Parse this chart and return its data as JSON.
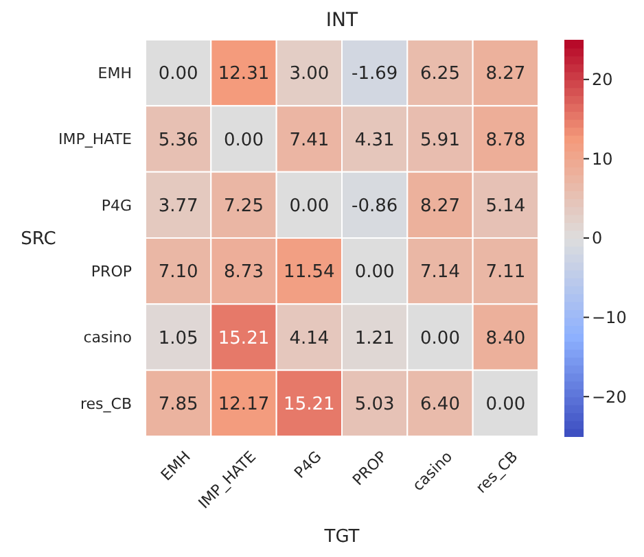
{
  "chart_data": {
    "type": "heatmap",
    "title": "INT",
    "xlabel": "TGT",
    "ylabel": "SRC",
    "categories": [
      "EMH",
      "IMP_HATE",
      "P4G",
      "PROP",
      "casino",
      "res_CB"
    ],
    "y_categories": [
      "EMH",
      "IMP_HATE",
      "P4G",
      "PROP",
      "casino",
      "res_CB"
    ],
    "cells": [
      [
        0.0,
        12.31,
        3.0,
        -1.69,
        6.25,
        8.27
      ],
      [
        5.36,
        0.0,
        7.41,
        4.31,
        5.91,
        8.78
      ],
      [
        3.77,
        7.25,
        0.0,
        -0.86,
        8.27,
        5.14
      ],
      [
        7.1,
        8.73,
        11.54,
        0.0,
        7.14,
        7.11
      ],
      [
        1.05,
        15.21,
        4.14,
        1.21,
        0.0,
        8.4
      ],
      [
        7.85,
        12.17,
        15.21,
        5.03,
        6.4,
        0.0
      ]
    ],
    "cell_labels": [
      [
        "0.00",
        "12.31",
        "3.00",
        "-1.69",
        "6.25",
        "8.27"
      ],
      [
        "5.36",
        "0.00",
        "7.41",
        "4.31",
        "5.91",
        "8.78"
      ],
      [
        "3.77",
        "7.25",
        "0.00",
        "-0.86",
        "8.27",
        "5.14"
      ],
      [
        "7.10",
        "8.73",
        "11.54",
        "0.00",
        "7.14",
        "7.11"
      ],
      [
        "1.05",
        "15.21",
        "4.14",
        "1.21",
        "0.00",
        "8.40"
      ],
      [
        "7.85",
        "12.17",
        "15.21",
        "5.03",
        "6.40",
        "0.00"
      ]
    ],
    "clim": [
      -25,
      25
    ],
    "cticks": [
      -20,
      -10,
      0,
      10,
      20
    ]
  }
}
